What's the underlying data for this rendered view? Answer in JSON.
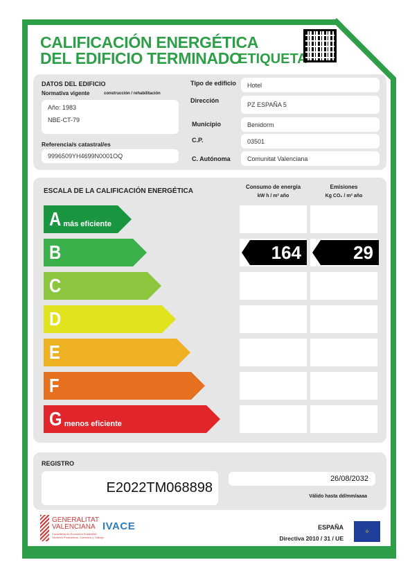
{
  "title": {
    "line1": "CALIFICACIÓN ENERGÉTICA",
    "line2": "DEL EDIFICIO TERMINADO",
    "tag": "ETIQUETA"
  },
  "building": {
    "heading": "DATOS DEL EDIFICIO",
    "normativa_label": "Normativa vigente",
    "normativa_sub": "construcción / rehabilitación",
    "year": "Año: 1983",
    "norma": "NBE-CT-79",
    "catastral_label": "Referencia/s catastral/es",
    "catastral": "9996509YH4699N0001OQ",
    "fields": [
      {
        "label": "Tipo de edificio",
        "value": "Hotel"
      },
      {
        "label": "Dirección",
        "value": "PZ ESPAÑA 5"
      },
      {
        "label": "Municipio",
        "value": "Benidorm"
      },
      {
        "label": "C.P.",
        "value": "03501"
      },
      {
        "label": "C. Autónoma",
        "value": "Comunitat Valenciana"
      }
    ]
  },
  "scale": {
    "heading": "ESCALA DE LA CALIFICACIÓN ENERGÉTICA",
    "consumo_label": "Consumo de energía",
    "consumo_unit": "kW h / m² año",
    "emisiones_label": "Emisiones",
    "emisiones_unit": "Kg CO₂ / m² año",
    "classes": [
      {
        "letter": "A",
        "sub": "más eficiente",
        "color": "#1a9641"
      },
      {
        "letter": "B",
        "sub": "",
        "color": "#3cb04a"
      },
      {
        "letter": "C",
        "sub": "",
        "color": "#8cc63f"
      },
      {
        "letter": "D",
        "sub": "",
        "color": "#e2e31f"
      },
      {
        "letter": "E",
        "sub": "",
        "color": "#efb124"
      },
      {
        "letter": "F",
        "sub": "",
        "color": "#e5701f"
      },
      {
        "letter": "G",
        "sub": "menos eficiente",
        "color": "#e0262b"
      }
    ],
    "rating": "B",
    "consumo": "164",
    "emisiones": "29"
  },
  "registro": {
    "label": "REGISTRO",
    "number": "E2022TM068898",
    "date": "26/08/2032",
    "valid_label": "Válido hasta dd/mm/aaaa"
  },
  "footer": {
    "gv1": "GENERALITAT",
    "gv2": "VALENCIANA",
    "gv_sub": "Conselleria de Economía Sostenible, Sectores Productivos, Comercio y Trabajo",
    "ivace": "IVACE",
    "country": "ESPAÑA",
    "directive": "Directiva 2010 / 31 / UE"
  }
}
